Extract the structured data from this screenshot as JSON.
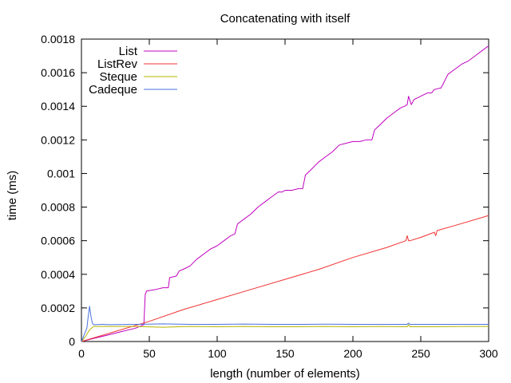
{
  "chart_data": {
    "type": "line",
    "title": "Concatenating with itself",
    "xlabel": "length (number of elements)",
    "ylabel": "time (ms)",
    "xlim": [
      0,
      300
    ],
    "ylim": [
      0,
      0.0018
    ],
    "xticks": [
      0,
      50,
      100,
      150,
      200,
      250,
      300
    ],
    "yticks": [
      0,
      0.0002,
      0.0004,
      0.0006,
      0.0008,
      0.001,
      0.0012,
      0.0014,
      0.0016,
      0.0018
    ],
    "ytick_labels": [
      "0",
      "0.0002",
      "0.0004",
      "0.0006",
      "0.0008",
      "0.001",
      "0.0012",
      "0.0014",
      "0.0016",
      "0.0018"
    ],
    "grid": false,
    "legend_position": "top-left",
    "series": [
      {
        "name": "List",
        "color": "#c000c0",
        "x": [
          0,
          5,
          10,
          20,
          30,
          40,
          46,
          47,
          48,
          55,
          60,
          64,
          65,
          70,
          72,
          75,
          80,
          85,
          90,
          95,
          100,
          105,
          110,
          113,
          115,
          120,
          125,
          130,
          135,
          140,
          145,
          148,
          150,
          155,
          160,
          163,
          165,
          170,
          175,
          180,
          185,
          190,
          195,
          200,
          205,
          210,
          214,
          216,
          220,
          225,
          230,
          235,
          238,
          240,
          241,
          243,
          245,
          250,
          255,
          258,
          260,
          265,
          270,
          275,
          280,
          285,
          290,
          295,
          300
        ],
        "y": [
          0,
          1e-05,
          2e-05,
          4e-05,
          6e-05,
          8e-05,
          0.0001,
          0.00028,
          0.0003,
          0.00031,
          0.00032,
          0.00032,
          0.00038,
          0.00039,
          0.00042,
          0.00043,
          0.00045,
          0.00049,
          0.00052,
          0.00055,
          0.00057,
          0.0006,
          0.00063,
          0.00064,
          0.0007,
          0.00073,
          0.00076,
          0.0008,
          0.00083,
          0.00086,
          0.00089,
          0.00089,
          0.0009,
          0.0009,
          0.00091,
          0.00091,
          0.00099,
          0.00103,
          0.00107,
          0.0011,
          0.00113,
          0.00117,
          0.00118,
          0.00119,
          0.00119,
          0.0012,
          0.0012,
          0.00126,
          0.00129,
          0.00133,
          0.00136,
          0.00139,
          0.0014,
          0.00141,
          0.00146,
          0.00141,
          0.00144,
          0.00146,
          0.00148,
          0.00148,
          0.0015,
          0.00151,
          0.00159,
          0.00162,
          0.00165,
          0.00167,
          0.0017,
          0.00173,
          0.00176
        ]
      },
      {
        "name": "ListRev",
        "color": "#f03232",
        "x": [
          0,
          25,
          50,
          75,
          100,
          125,
          150,
          175,
          200,
          225,
          239,
          240,
          241,
          242,
          250,
          260,
          261,
          262,
          275,
          300
        ],
        "y": [
          0,
          6e-05,
          0.00012,
          0.00019,
          0.00025,
          0.00031,
          0.00037,
          0.00043,
          0.0005,
          0.00056,
          0.0006,
          0.00063,
          0.0006,
          0.0006,
          0.00062,
          0.00065,
          0.00063,
          0.00066,
          0.00069,
          0.00075
        ]
      },
      {
        "name": "Steque",
        "color": "#b4b400",
        "x": [
          0,
          3,
          6,
          9,
          12,
          20,
          40,
          60,
          80,
          100,
          120,
          140,
          160,
          180,
          200,
          220,
          240,
          241,
          242,
          260,
          280,
          300
        ],
        "y": [
          0,
          3e-05,
          7e-05,
          9e-05,
          9e-05,
          9e-05,
          9e-05,
          8.5e-05,
          9e-05,
          8.8e-05,
          9e-05,
          8.8e-05,
          8.8e-05,
          9e-05,
          8.8e-05,
          9e-05,
          8.8e-05,
          0.0001,
          8.8e-05,
          8.8e-05,
          9e-05,
          9e-05
        ]
      },
      {
        "name": "Cadeque",
        "color": "#4a72e0",
        "x": [
          0,
          2,
          4,
          5,
          6,
          7,
          8,
          9,
          10,
          15,
          20,
          40,
          60,
          80,
          100,
          120,
          140,
          160,
          180,
          200,
          220,
          240,
          241,
          242,
          260,
          280,
          300
        ],
        "y": [
          0,
          4e-05,
          8e-05,
          0.00015,
          0.00021,
          0.00015,
          0.00011,
          0.0001,
          0.0001,
          0.000102,
          0.0001,
          0.000102,
          0.000105,
          0.000102,
          0.000102,
          0.000104,
          0.000102,
          0.000102,
          0.000103,
          0.000102,
          0.000102,
          0.000102,
          0.00011,
          0.000102,
          0.000102,
          0.000102,
          0.000102
        ]
      }
    ]
  }
}
